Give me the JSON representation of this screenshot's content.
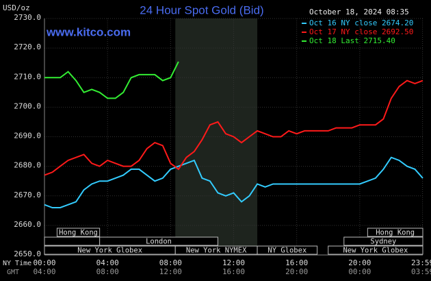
{
  "chart_data": {
    "type": "line",
    "title": "24 Hour Spot Gold (Bid)",
    "y_unit": "USD/oz",
    "timestamp": "October 18, 2024 08:35",
    "watermark": "www.kitco.com",
    "x_axis_labels": [
      "NY Time",
      "GMT"
    ],
    "x": [
      0,
      0.5,
      1,
      1.5,
      2,
      2.5,
      3,
      3.5,
      4,
      4.5,
      5,
      5.5,
      6,
      6.5,
      7,
      7.5,
      8,
      8.5,
      9,
      9.5,
      10,
      10.5,
      11,
      11.5,
      12,
      12.5,
      13,
      13.5,
      14,
      14.5,
      15,
      15.5,
      16,
      16.5,
      17,
      17.5,
      18,
      18.5,
      19,
      19.5,
      20,
      20.5,
      21,
      21.5,
      22,
      22.5,
      23,
      23.5,
      24
    ],
    "series": [
      {
        "name": "Oct 16 NY close 2674.20",
        "color": "#33ccff",
        "values": [
          2667,
          2666,
          2666,
          2667,
          2668,
          2672,
          2674,
          2675,
          2675,
          2676,
          2677,
          2679,
          2679,
          2677,
          2675,
          2676,
          2679,
          2680,
          2681,
          2682,
          2676,
          2675,
          2671,
          2670,
          2671,
          2668,
          2670,
          2674,
          2673,
          2674,
          2674,
          2674,
          2674,
          2674,
          2674,
          2674,
          2674,
          2674,
          2674,
          2674,
          2674,
          2675,
          2676,
          2679,
          2683,
          2682,
          2680,
          2679,
          2676
        ]
      },
      {
        "name": "Oct 17 NY close 2692.50",
        "color": "#ff1a1a",
        "values": [
          2677,
          2678,
          2680,
          2682,
          2683,
          2684,
          2681,
          2680,
          2682,
          2681,
          2680,
          2680,
          2682,
          2686,
          2688,
          2687,
          2681,
          2679,
          2683,
          2685,
          2689,
          2694,
          2695,
          2691,
          2690,
          2688,
          2690,
          2692,
          2691,
          2690,
          2690,
          2692,
          2691,
          2692,
          2692,
          2692,
          2692,
          2693,
          2693,
          2693,
          2694,
          2694,
          2694,
          2696,
          2703,
          2707,
          2709,
          2708,
          2709
        ]
      },
      {
        "name": "Oct 18 Last 2715.40",
        "color": "#33ee33",
        "values": [
          2710,
          2710,
          2710,
          2712,
          2709,
          2705,
          2706,
          2705,
          2703,
          2703,
          2705,
          2710,
          2711,
          2711,
          2711,
          2709,
          2710,
          2715.4,
          null,
          null,
          null,
          null,
          null,
          null,
          null,
          null,
          null,
          null,
          null,
          null,
          null,
          null,
          null,
          null,
          null,
          null,
          null,
          null,
          null,
          null,
          null,
          null,
          null,
          null,
          null,
          null,
          null,
          null,
          null
        ]
      }
    ],
    "xlim": [
      0,
      24
    ],
    "ylim": [
      2650,
      2730
    ],
    "yticks": [
      {
        "value": 2650,
        "label": "2650.0"
      },
      {
        "value": 2660,
        "label": "2660.0"
      },
      {
        "value": 2670,
        "label": "2670.0"
      },
      {
        "value": 2680,
        "label": "2680.0"
      },
      {
        "value": 2690,
        "label": "2690.0"
      },
      {
        "value": 2700,
        "label": "2700.0"
      },
      {
        "value": 2710,
        "label": "2710.0"
      },
      {
        "value": 2720,
        "label": "2720.0"
      },
      {
        "value": 2730,
        "label": "2730.0"
      }
    ],
    "xticks": [
      {
        "value": 0,
        "label": "00:00"
      },
      {
        "value": 4,
        "label": "04:00"
      },
      {
        "value": 8,
        "label": "08:00"
      },
      {
        "value": 12,
        "label": "12:00"
      },
      {
        "value": 16,
        "label": "16:00"
      },
      {
        "value": 20,
        "label": "20:00"
      },
      {
        "value": 23.983,
        "label": "23:59"
      }
    ],
    "x2_labels": [
      "04:00",
      "08:00",
      "12:00",
      "16:00",
      "20:00",
      "00:00",
      "03:59"
    ],
    "grid": true,
    "legend": "upper right",
    "shaded_span": [
      8.3,
      13.5
    ],
    "sessions": [
      {
        "label": "Hong Kong",
        "row": 0,
        "start": 0.8,
        "end": 3.5
      },
      {
        "row": 1,
        "start": 0,
        "end": 3.5
      },
      {
        "label": "London",
        "row": 1,
        "start": 3.5,
        "end": 11
      },
      {
        "label": "New York Globex",
        "row": 2,
        "start": 0,
        "end": 8.3
      },
      {
        "label": "New York NYMEX",
        "row": 2,
        "start": 8.3,
        "end": 13.5
      },
      {
        "label": "NY Globex",
        "row": 2,
        "start": 13.5,
        "end": 17.3
      },
      {
        "label": "Hong Kong",
        "row": 0,
        "start": 20.5,
        "end": 24
      },
      {
        "label": "Sydney",
        "row": 1,
        "start": 19,
        "end": 24
      },
      {
        "label": "New York Globex",
        "row": 2,
        "start": 18,
        "end": 24
      }
    ]
  }
}
